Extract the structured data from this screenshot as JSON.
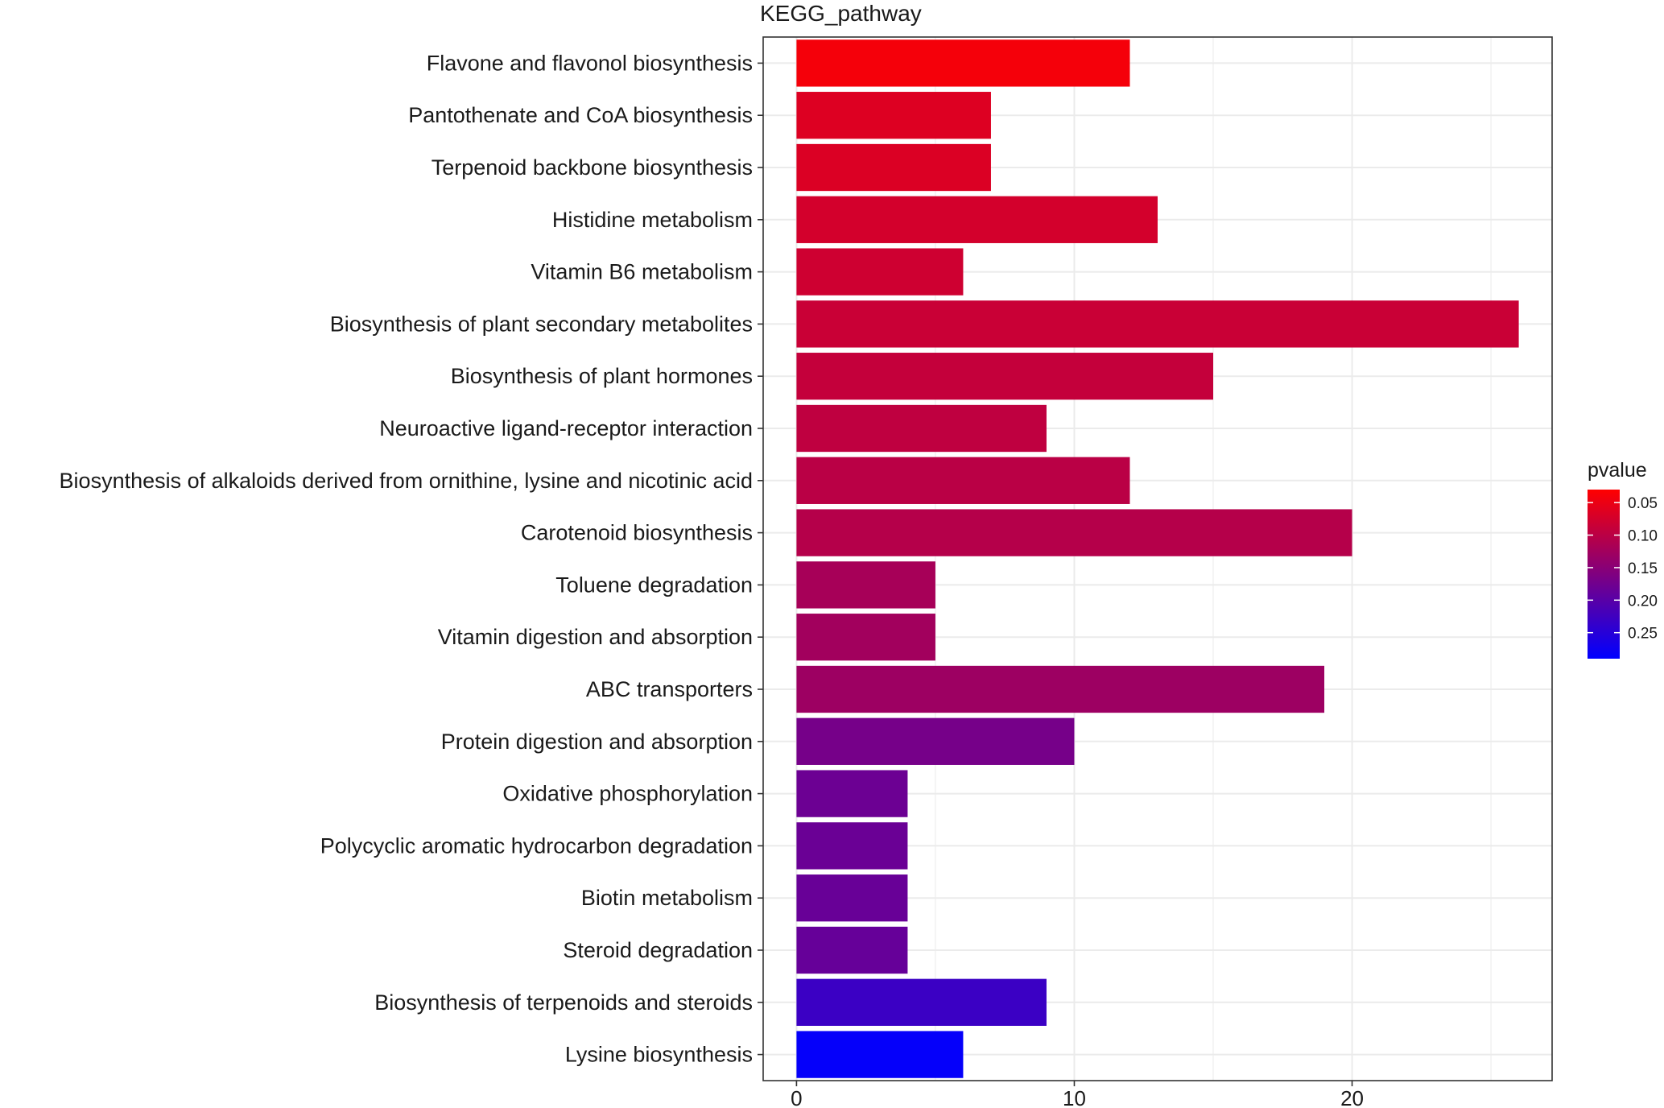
{
  "chart_data": {
    "type": "bar",
    "orientation": "horizontal",
    "title": "KEGG_pathway",
    "xlabel": "",
    "ylabel": "",
    "xlim": [
      -1.2,
      27.2
    ],
    "x_ticks": [
      0,
      10,
      20
    ],
    "grid": true,
    "categories": [
      "Flavone and flavonol biosynthesis",
      "Pantothenate and CoA biosynthesis",
      "Terpenoid backbone biosynthesis",
      "Histidine metabolism",
      "Vitamin B6 metabolism",
      "Biosynthesis of plant secondary metabolites",
      "Biosynthesis of plant hormones",
      "Neuroactive ligand-receptor interaction",
      "Biosynthesis of alkaloids derived from ornithine, lysine and nicotinic acid",
      "Carotenoid biosynthesis",
      "Toluene degradation",
      "Vitamin digestion and absorption",
      "ABC transporters",
      "Protein digestion and absorption",
      "Oxidative phosphorylation",
      "Polycyclic aromatic hydrocarbon degradation",
      "Biotin metabolism",
      "Steroid degradation",
      "Biosynthesis of terpenoids and steroids",
      "Lysine biosynthesis"
    ],
    "values": [
      12,
      7,
      7,
      13,
      6,
      26,
      15,
      9,
      12,
      20,
      5,
      5,
      19,
      10,
      4,
      4,
      4,
      4,
      9,
      6
    ],
    "pvalues": [
      0.04,
      0.065,
      0.067,
      0.075,
      0.08,
      0.085,
      0.09,
      0.095,
      0.1,
      0.105,
      0.12,
      0.125,
      0.13,
      0.17,
      0.18,
      0.182,
      0.184,
      0.186,
      0.23,
      0.285
    ],
    "legend": {
      "title": "pvalue",
      "position": "right",
      "range": [
        0.03,
        0.29
      ],
      "ticks": [
        "0.05",
        "0.10",
        "0.15",
        "0.20",
        "0.25"
      ],
      "color_low": "#FF0000",
      "color_high": "#0000FF"
    }
  }
}
